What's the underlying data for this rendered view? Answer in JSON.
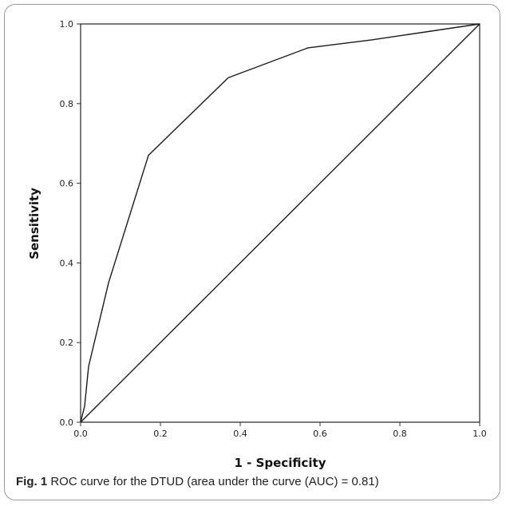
{
  "caption": {
    "label": "Fig. 1",
    "text": "ROC curve for the DTUD (area under the curve (AUC) = 0.81)"
  },
  "chart_data": {
    "type": "line",
    "xlabel": "1 - Specificity",
    "ylabel": "Sensitivity",
    "xlim": [
      0,
      1
    ],
    "ylim": [
      0,
      1
    ],
    "x_ticks": [
      "0.0",
      "0.2",
      "0.4",
      "0.6",
      "0.8",
      "1.0"
    ],
    "y_ticks": [
      "0.0",
      "0.2",
      "0.4",
      "0.6",
      "0.8",
      "1.0"
    ],
    "grid": false,
    "legend": "none",
    "series": [
      {
        "x": [
          0.0,
          0.01,
          0.02,
          0.07,
          0.17,
          0.37,
          0.57,
          0.73,
          1.0
        ],
        "y": [
          0.0,
          0.04,
          0.14,
          0.35,
          0.67,
          0.865,
          0.94,
          0.96,
          1.0
        ]
      },
      {
        "x": [
          0.0,
          1.0
        ],
        "y": [
          0.0,
          1.0
        ]
      }
    ],
    "colors": {
      "line": "#1a1a1a",
      "axis": "#333333"
    }
  }
}
